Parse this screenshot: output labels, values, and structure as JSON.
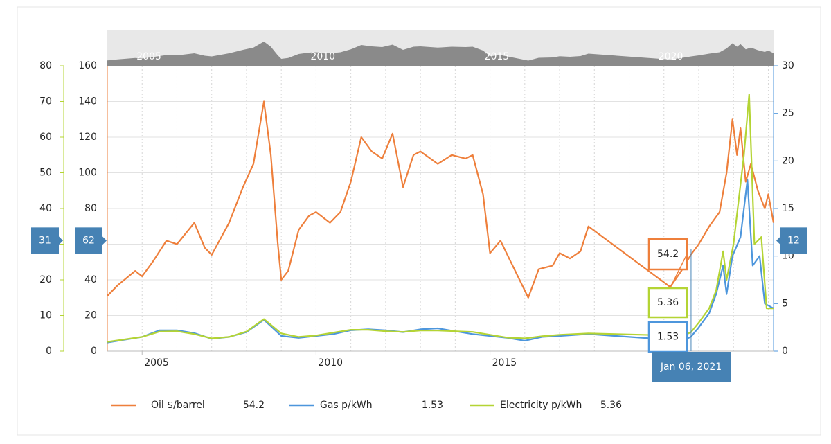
{
  "chart_data": {
    "type": "line",
    "xlim": [
      2004,
      2023.15
    ],
    "xticks": [
      2005,
      2010,
      2015
    ],
    "xgrid": [
      2004,
      2005,
      2006,
      2007,
      2008,
      2009,
      2010,
      2011,
      2012,
      2013,
      2014,
      2015,
      2016,
      2017,
      2018,
      2019,
      2020,
      2021,
      2022,
      2023
    ],
    "navigator_ticks": [
      2005,
      2010,
      2015,
      2020
    ],
    "ylim": [
      0,
      160
    ],
    "yticks": [
      0,
      20,
      40,
      60,
      80,
      100,
      120,
      140,
      160
    ],
    "y1lim": [
      0,
      80
    ],
    "y1ticks": [
      0,
      10,
      20,
      30,
      40,
      50,
      60,
      70,
      80
    ],
    "y2lim": [
      0,
      30
    ],
    "y2ticks": [
      0,
      5,
      10,
      15,
      20,
      25,
      30
    ],
    "grid": true,
    "series": [
      {
        "name": "Oil $/barrel",
        "color": "#ee7f3b",
        "x": [
          2004.0,
          2004.3,
          2004.8,
          2005.0,
          2005.3,
          2005.7,
          2006.0,
          2006.5,
          2006.8,
          2007.0,
          2007.5,
          2007.9,
          2008.2,
          2008.5,
          2008.7,
          2008.9,
          2009.0,
          2009.2,
          2009.5,
          2009.8,
          2010.0,
          2010.4,
          2010.7,
          2011.0,
          2011.3,
          2011.6,
          2011.9,
          2012.2,
          2012.5,
          2012.8,
          2013.0,
          2013.5,
          2013.9,
          2014.3,
          2014.5,
          2014.8,
          2015.0,
          2015.3,
          2015.6,
          2015.9,
          2016.1,
          2016.4,
          2016.8,
          2017.0,
          2017.3,
          2017.6,
          2017.83,
          2020.18,
          2020.5,
          2020.78,
          2021.0,
          2021.3,
          2021.6,
          2021.8,
          2021.97,
          2022.1,
          2022.2,
          2022.35,
          2022.5,
          2022.7,
          2022.9,
          2023.0,
          2023.15
        ],
        "values": [
          31,
          37,
          45,
          42,
          50,
          62,
          60,
          72,
          58,
          54,
          72,
          92,
          105,
          140,
          110,
          60,
          40,
          45,
          68,
          76,
          78,
          72,
          78,
          95,
          120,
          112,
          108,
          122,
          92,
          110,
          112,
          105,
          110,
          108,
          110,
          88,
          55,
          62,
          50,
          38,
          30,
          46,
          48,
          55,
          52,
          56,
          70,
          36,
          45,
          54.2,
          60,
          70,
          78,
          100,
          130,
          110,
          125,
          95,
          105,
          90,
          80,
          88,
          72
        ]
      },
      {
        "name": "Gas p/kWh",
        "color": "#4d96dc",
        "axis": "y2",
        "x": [
          2004.0,
          2005.0,
          2005.5,
          2006.0,
          2006.5,
          2007.0,
          2007.5,
          2008.0,
          2008.5,
          2009.0,
          2009.5,
          2010.0,
          2010.5,
          2011.0,
          2011.5,
          2012.0,
          2012.5,
          2013.0,
          2013.5,
          2014.0,
          2014.5,
          2015.0,
          2015.5,
          2016.0,
          2016.5,
          2017.0,
          2017.83,
          2020.18,
          2020.5,
          2020.78,
          2021.0,
          2021.3,
          2021.5,
          2021.7,
          2021.8,
          2021.97,
          2022.2,
          2022.4,
          2022.55,
          2022.75,
          2022.9,
          2023.15
        ],
        "values": [
          0.9,
          1.5,
          2.2,
          2.2,
          1.9,
          1.3,
          1.5,
          2.0,
          3.3,
          1.6,
          1.4,
          1.6,
          1.8,
          2.2,
          2.3,
          2.2,
          2.0,
          2.3,
          2.4,
          2.1,
          1.8,
          1.6,
          1.4,
          1.1,
          1.5,
          1.6,
          1.8,
          1.2,
          1.0,
          1.53,
          2.5,
          4,
          6,
          9,
          6,
          10,
          12,
          18,
          9,
          10,
          5,
          4.5
        ]
      },
      {
        "name": "Electricity p/kWh",
        "color": "#b4d434",
        "axis": "y1",
        "x": [
          2004.0,
          2005.0,
          2005.5,
          2006.0,
          2006.5,
          2007.0,
          2007.5,
          2008.0,
          2008.5,
          2009.0,
          2009.5,
          2010.0,
          2010.5,
          2011.0,
          2011.5,
          2012.0,
          2012.5,
          2013.0,
          2013.5,
          2014.0,
          2014.5,
          2015.0,
          2015.5,
          2016.0,
          2016.5,
          2017.0,
          2017.83,
          2020.18,
          2020.5,
          2020.78,
          2021.0,
          2021.3,
          2021.5,
          2021.7,
          2021.8,
          2022.0,
          2022.3,
          2022.45,
          2022.6,
          2022.8,
          2022.95,
          2023.15
        ],
        "values": [
          2.6,
          4,
          5.5,
          5.6,
          4.8,
          3.6,
          4,
          5.5,
          9,
          5,
          4,
          4.4,
          5.2,
          6,
          6,
          5.6,
          5.4,
          5.8,
          5.8,
          5.6,
          5.4,
          4.6,
          3.8,
          3.6,
          4.2,
          4.6,
          5,
          4.4,
          4.0,
          5.36,
          8,
          12,
          17,
          28,
          20,
          30,
          55,
          72,
          30,
          32,
          12,
          12
        ]
      }
    ],
    "crosshair": {
      "x": 2020.78,
      "label": "Jan 06, 2021",
      "y1": 31,
      "y": 62,
      "y2": 12
    },
    "tooltip": {
      "oil": "54.2",
      "electricity": "5.36",
      "gas": "1.53"
    },
    "legend_values": [
      "54.2",
      "1.53",
      "5.36"
    ]
  }
}
